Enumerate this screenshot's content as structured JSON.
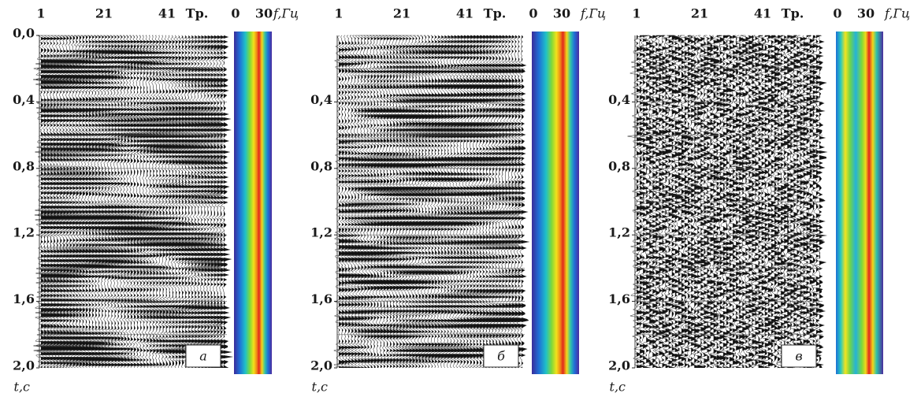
{
  "panels": [
    {
      "trace_ticks": [
        "1",
        "21",
        "41"
      ],
      "trace_unit": "Тр.",
      "freq_ticks": [
        "0",
        "30"
      ],
      "freq_unit": "f,Гц",
      "time_ticks": [
        "0,0",
        "0,4",
        "0,8",
        "1,2",
        "1,6",
        "2,0"
      ],
      "time_unit": "t,c",
      "label": "а"
    },
    {
      "trace_ticks": [
        "1",
        "21",
        "41"
      ],
      "trace_unit": "Тр.",
      "freq_ticks": [
        "0",
        "30"
      ],
      "freq_unit": "f,Гц",
      "time_ticks": [
        "0,4",
        "0,8",
        "1,2",
        "1,6",
        "2,0"
      ],
      "time_unit": "t,c",
      "label": "б"
    },
    {
      "trace_ticks": [
        "1",
        "21",
        "41"
      ],
      "trace_unit": "Тр.",
      "freq_ticks": [
        "0",
        "30"
      ],
      "freq_unit": "f,Гц",
      "time_ticks": [
        "0,4",
        "0,8",
        "1,2",
        "1,6",
        "2,0"
      ],
      "time_unit": "t,c",
      "label": "в"
    }
  ]
}
